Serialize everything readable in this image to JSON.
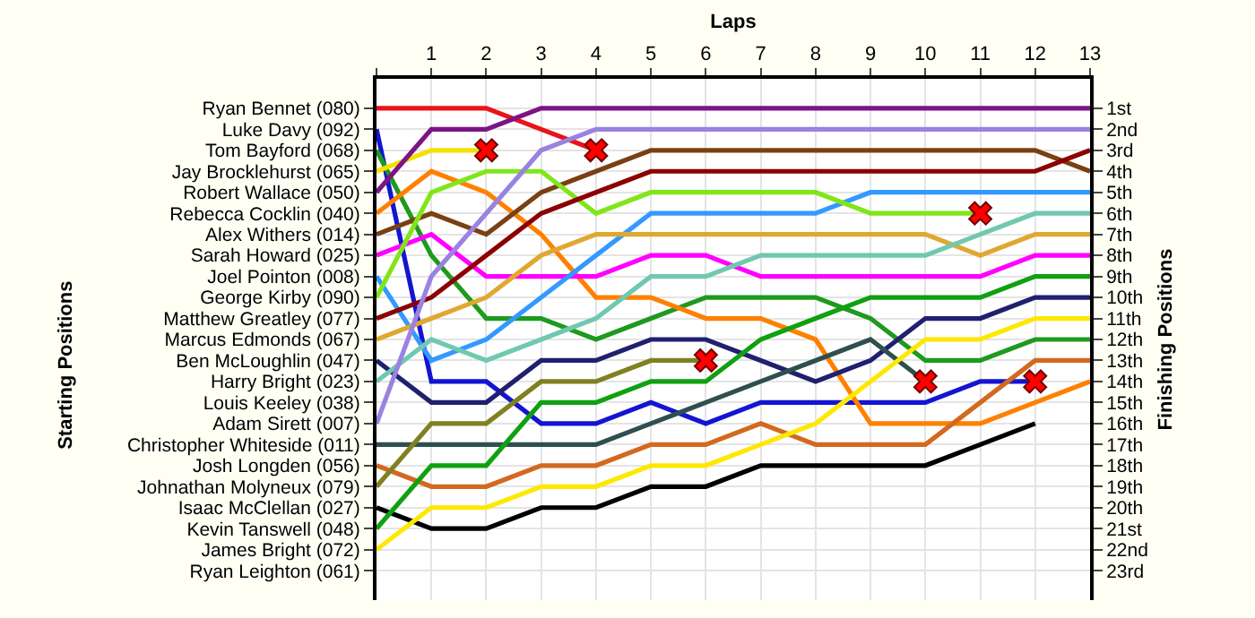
{
  "chart_data": {
    "type": "line",
    "xlabel": "Laps",
    "annotations": [
      "Starting Positions"
    ],
    "y2label": "Finishing Positions",
    "x": [
      0,
      1,
      2,
      3,
      4,
      5,
      6,
      7,
      8,
      9,
      10,
      11,
      12,
      13
    ],
    "xlim": [
      0,
      13
    ],
    "xticks": [
      {
        "value": 0,
        "label": null
      },
      1,
      2,
      3,
      4,
      5,
      6,
      7,
      8,
      9,
      10,
      11,
      12,
      13
    ],
    "y_categories": [
      "Ryan Bennet (080)",
      "Luke Davy (092)",
      "Tom Bayford (068)",
      "Jay Brocklehurst (065)",
      "Robert Wallace (050)",
      "Rebecca Cocklin (040)",
      "Alex Withers (014)",
      "Sarah Howard (025)",
      "Joel Pointon (008)",
      "George Kirby (090)",
      "Matthew Greatley (077)",
      "Marcus Edmonds (067)",
      "Ben McLoughlin (047)",
      "Harry Bright (023)",
      "Louis Keeley (038)",
      "Adam Sirett (007)",
      "Christopher Whiteside (011)",
      "Josh Longden (056)",
      "Johnathan Molyneux (079)",
      "Isaac McClellan (027)",
      "Kevin Tanswell (048)",
      "James Bright (072)",
      "Ryan Leighton (061)"
    ],
    "y2lim": [
      24.4,
      -0.4
    ],
    "y2ticks": [
      {
        "value": 1,
        "label": "1st"
      },
      {
        "value": 2,
        "label": "2nd"
      },
      {
        "value": 3,
        "label": "3rd"
      },
      {
        "value": 4,
        "label": "4th"
      },
      {
        "value": 5,
        "label": "5th"
      },
      {
        "value": 6,
        "label": "6th"
      },
      {
        "value": 7,
        "label": "7th"
      },
      {
        "value": 8,
        "label": "8th"
      },
      {
        "value": 9,
        "label": "9th"
      },
      {
        "value": 10,
        "label": "10th"
      },
      {
        "value": 11,
        "label": "11th"
      },
      {
        "value": 12,
        "label": "12th"
      },
      {
        "value": 13,
        "label": "13th"
      },
      {
        "value": 14,
        "label": "14th"
      },
      {
        "value": 15,
        "label": "15th"
      },
      {
        "value": 16,
        "label": "16th"
      },
      {
        "value": 17,
        "label": "17th"
      },
      {
        "value": 18,
        "label": "18th"
      },
      {
        "value": 19,
        "label": "19th"
      },
      {
        "value": 20,
        "label": "20th"
      },
      {
        "value": 21,
        "label": "21st"
      },
      {
        "value": 22,
        "label": "22nd"
      },
      {
        "value": 23,
        "label": "23rd"
      }
    ],
    "grid": true,
    "line_style": "solid",
    "series": [
      {
        "axis": "y2",
        "color": "#e8141a",
        "values": [
          1,
          1,
          1,
          2,
          3,
          null,
          null,
          null,
          null,
          null,
          null,
          null,
          null,
          null
        ]
      },
      {
        "axis": "y2",
        "color": "#1414d2",
        "values": [
          2,
          14,
          14,
          16,
          16,
          15,
          16,
          15,
          15,
          15,
          15,
          14,
          14,
          null
        ]
      },
      {
        "axis": "y2",
        "color": "#1e9a1e",
        "values": [
          3,
          8,
          11,
          11,
          12,
          11,
          10,
          10,
          10,
          11,
          13,
          13,
          12,
          12
        ]
      },
      {
        "axis": "y2",
        "color": "#f5e000",
        "values": [
          4,
          3,
          3,
          null,
          null,
          null,
          null,
          null,
          null,
          null,
          null,
          null,
          null,
          null
        ]
      },
      {
        "axis": "y2",
        "color": "#7b1585",
        "values": [
          5,
          2,
          2,
          1,
          1,
          1,
          1,
          1,
          1,
          1,
          1,
          1,
          1,
          1
        ]
      },
      {
        "axis": "y2",
        "color": "#ff8000",
        "values": [
          6,
          4,
          5,
          7,
          10,
          10,
          11,
          11,
          12,
          16,
          16,
          16,
          15,
          14
        ]
      },
      {
        "axis": "y2",
        "color": "#7a4012",
        "values": [
          7,
          6,
          7,
          5,
          4,
          3,
          3,
          3,
          3,
          3,
          3,
          3,
          3,
          4
        ]
      },
      {
        "axis": "y2",
        "color": "#ff00ff",
        "values": [
          8,
          7,
          9,
          9,
          9,
          8,
          8,
          9,
          9,
          9,
          9,
          9,
          8,
          8
        ]
      },
      {
        "axis": "y2",
        "color": "#3399ff",
        "values": [
          9,
          13,
          12,
          10,
          8,
          6,
          6,
          6,
          6,
          5,
          5,
          5,
          5,
          5
        ]
      },
      {
        "axis": "y2",
        "color": "#80e61a",
        "values": [
          10,
          5,
          4,
          4,
          6,
          5,
          5,
          5,
          5,
          6,
          6,
          6,
          null,
          null
        ]
      },
      {
        "axis": "y2",
        "color": "#8b0000",
        "values": [
          11,
          10,
          8,
          6,
          5,
          4,
          4,
          4,
          4,
          4,
          4,
          4,
          4,
          3
        ]
      },
      {
        "axis": "y2",
        "color": "#e0a830",
        "values": [
          12,
          11,
          10,
          8,
          7,
          7,
          7,
          7,
          7,
          7,
          7,
          8,
          7,
          7
        ]
      },
      {
        "axis": "y2",
        "color": "#202070",
        "values": [
          13,
          15,
          15,
          13,
          13,
          12,
          12,
          13,
          14,
          13,
          11,
          11,
          10,
          10
        ]
      },
      {
        "axis": "y2",
        "color": "#70c8b0",
        "values": [
          14,
          12,
          13,
          12,
          11,
          9,
          9,
          8,
          8,
          8,
          8,
          7,
          6,
          6
        ]
      },
      {
        "axis": "y2",
        "color": "#9a82e0",
        "values": [
          16,
          9,
          6,
          3,
          2,
          2,
          2,
          2,
          2,
          2,
          2,
          2,
          2,
          2
        ]
      },
      {
        "axis": "y2",
        "color": "#2f4f4f",
        "values": [
          17,
          17,
          17,
          17,
          17,
          16,
          15,
          14,
          13,
          12,
          14,
          null,
          null,
          null
        ]
      },
      {
        "axis": "y2",
        "color": "#d2691e",
        "values": [
          18,
          19,
          19,
          18,
          18,
          17,
          17,
          16,
          17,
          17,
          17,
          15,
          13,
          13
        ]
      },
      {
        "axis": "y2",
        "color": "#808020",
        "values": [
          19,
          16,
          16,
          14,
          14,
          13,
          13,
          null,
          null,
          null,
          null,
          null,
          null,
          null
        ]
      },
      {
        "axis": "y2",
        "color": "#000000",
        "values": [
          20,
          21,
          21,
          20,
          20,
          19,
          19,
          18,
          18,
          18,
          18,
          17,
          16,
          null
        ]
      },
      {
        "axis": "y2",
        "color": "#10a010",
        "values": [
          21,
          18,
          18,
          15,
          15,
          14,
          14,
          12,
          11,
          10,
          10,
          10,
          9,
          9
        ]
      },
      {
        "axis": "y2",
        "color": "#ffe800",
        "values": [
          22,
          20,
          20,
          19,
          19,
          18,
          18,
          17,
          16,
          14,
          12,
          12,
          11,
          11
        ]
      },
      {
        "type": "scatter",
        "axis": "y2",
        "marker": "cross",
        "color": "#ff0000",
        "x": [
          2,
          4,
          6,
          10,
          11,
          12
        ],
        "values": [
          3,
          3,
          13,
          14,
          6,
          14
        ]
      }
    ]
  }
}
